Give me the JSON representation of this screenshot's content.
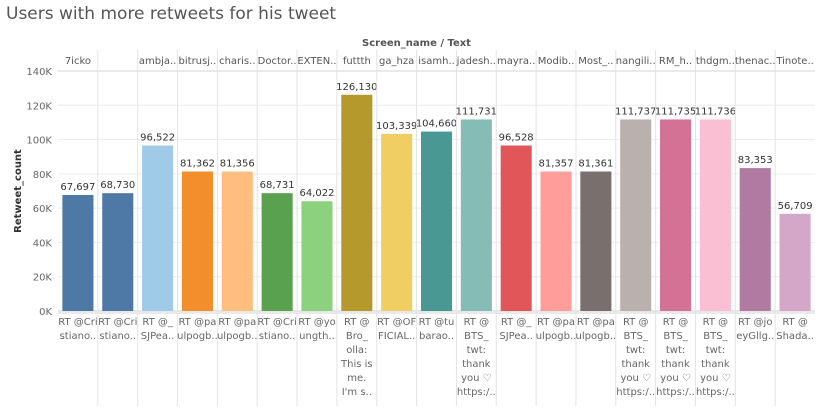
{
  "chart_data": {
    "type": "bar",
    "title": "Users with more retweets for his tweet",
    "top_header": "Screen_name / Text",
    "ylabel": "Retweet_count",
    "ylim": [
      0,
      140000
    ],
    "yticks": [
      "0K",
      "20K",
      "40K",
      "60K",
      "80K",
      "100K",
      "120K",
      "140K"
    ],
    "grid": true,
    "categories": [
      {
        "name": "7icko",
        "value": 67697,
        "value_label": "67,697",
        "color": "#4e79a7",
        "text_lines": [
          "RT @Cri",
          "stiano.."
        ]
      },
      {
        "name": "",
        "value": 68730,
        "value_label": "68,730",
        "color": "#4e79a7",
        "text_lines": [
          "RT @Cri",
          "stiano.."
        ]
      },
      {
        "name": "ambja..",
        "value": 96522,
        "value_label": "96,522",
        "color": "#a0cbe8",
        "text_lines": [
          "RT @_",
          "SJPea.."
        ]
      },
      {
        "name": "bitrusj..",
        "value": 81362,
        "value_label": "81,362",
        "color": "#f28e2b",
        "text_lines": [
          "RT @pa",
          "ulpogb.."
        ]
      },
      {
        "name": "charis..",
        "value": 81356,
        "value_label": "81,356",
        "color": "#ffbe7d",
        "text_lines": [
          "RT @pa",
          "ulpogb.."
        ]
      },
      {
        "name": "Doctor..",
        "value": 68731,
        "value_label": "68,731",
        "color": "#59a14f",
        "text_lines": [
          "RT @Cri",
          "stiano.."
        ]
      },
      {
        "name": "EXTEN..",
        "value": 64022,
        "value_label": "64,022",
        "color": "#8cd17d",
        "text_lines": [
          "RT @yo",
          "ungth.."
        ]
      },
      {
        "name": "futtth",
        "value": 126130,
        "value_label": "126,130",
        "color": "#b6992d",
        "text_lines": [
          "RT @",
          "Bro_",
          "olla:",
          "This is",
          "me.",
          "I'm s.."
        ]
      },
      {
        "name": "ga_hza",
        "value": 103339,
        "value_label": "103,339",
        "color": "#f1ce63",
        "text_lines": [
          "RT @OF",
          "FICIAL.."
        ]
      },
      {
        "name": "isamh..",
        "value": 104660,
        "value_label": "104,660",
        "color": "#499894",
        "text_lines": [
          "RT @tu",
          "barao.."
        ]
      },
      {
        "name": "jadesh..",
        "value": 111731,
        "value_label": "111,731",
        "color": "#86bcb6",
        "text_lines": [
          "RT @",
          "BTS_",
          "twt:",
          "thank",
          "you ♡",
          "https:/.."
        ]
      },
      {
        "name": "mayra..",
        "value": 96528,
        "value_label": "96,528",
        "color": "#e15759",
        "text_lines": [
          "RT @_",
          "SJPea.."
        ]
      },
      {
        "name": "Modib..",
        "value": 81357,
        "value_label": "81,357",
        "color": "#ff9d9a",
        "text_lines": [
          "RT @pa",
          "ulpogb.."
        ]
      },
      {
        "name": "Most_..",
        "value": 81361,
        "value_label": "81,361",
        "color": "#79706e",
        "text_lines": [
          "RT @pa",
          "ulpogb.."
        ]
      },
      {
        "name": "nangili..",
        "value": 111737,
        "value_label": "111,737",
        "color": "#bab0ac",
        "text_lines": [
          "RT @",
          "BTS_",
          "twt:",
          "thank",
          "you ♡",
          "https:/.."
        ]
      },
      {
        "name": "RM_h..",
        "value": 111735,
        "value_label": "111,735",
        "color": "#d37295",
        "text_lines": [
          "RT @",
          "BTS_",
          "twt:",
          "thank",
          "you ♡",
          "https:/.."
        ]
      },
      {
        "name": "thdgm..",
        "value": 111736,
        "value_label": "111,736",
        "color": "#fabfd2",
        "text_lines": [
          "RT @",
          "BTS_",
          "twt:",
          "thank",
          "you ♡",
          "https:/.."
        ]
      },
      {
        "name": "thenac..",
        "value": 83353,
        "value_label": "83,353",
        "color": "#b07aa1",
        "text_lines": [
          "RT @jo",
          "eyGllg.."
        ]
      },
      {
        "name": "Tinote..",
        "value": 56709,
        "value_label": "56,709",
        "color": "#d4a6c8",
        "text_lines": [
          "RT @",
          "Shada.."
        ]
      }
    ]
  }
}
